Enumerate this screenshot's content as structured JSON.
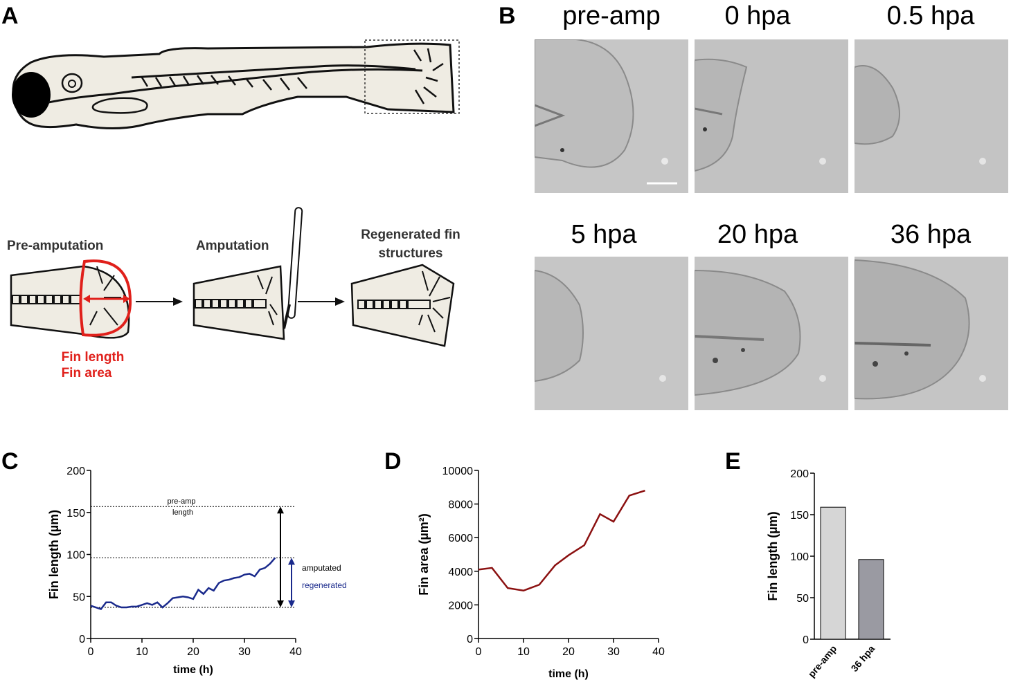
{
  "panels": {
    "a": "A",
    "b": "B",
    "c": "C",
    "d": "D",
    "e": "E"
  },
  "schematic": {
    "stage1": "Pre-amputation",
    "stage2": "Amputation",
    "stage3_line1": "Regenerated fin",
    "stage3_line2": "structures",
    "measure1": "Fin length",
    "measure2": "Fin area"
  },
  "micrographs": {
    "titles": [
      "pre-amp",
      "0 hpa",
      "0.5 hpa",
      "5 hpa",
      "20 hpa",
      "36 hpa"
    ]
  },
  "colors": {
    "blue": "#1a2a8c",
    "red": "#8b1010",
    "bar_light": "#d6d6d6",
    "bar_dark": "#9a9aa2",
    "annot_red": "#e0201b"
  },
  "chart_data": [
    {
      "panel": "C",
      "type": "line",
      "xlabel": "time (h)",
      "ylabel": "Fin length (µm)",
      "xlim": [
        0,
        40
      ],
      "ylim": [
        0,
        200
      ],
      "xticks": [
        "0",
        "10",
        "20",
        "30",
        "40"
      ],
      "yticks": [
        "0",
        "50",
        "100",
        "150",
        "200"
      ],
      "series": [
        {
          "x": [
            0,
            1,
            2,
            3,
            4,
            5,
            6,
            7,
            8,
            9,
            10,
            11,
            12,
            13,
            14,
            15,
            16,
            17,
            18,
            19,
            20,
            21,
            22,
            23,
            24,
            25,
            26,
            27,
            28,
            29,
            30,
            31,
            32,
            33,
            34,
            35,
            36
          ],
          "values": [
            39,
            37,
            35,
            43,
            43,
            39,
            37,
            37,
            38,
            38,
            40,
            42,
            40,
            43,
            37,
            42,
            48,
            49,
            50,
            49,
            47,
            58,
            53,
            60,
            57,
            66,
            69,
            70,
            72,
            73,
            76,
            77,
            74,
            82,
            84,
            89,
            96
          ]
        }
      ],
      "reference_lines": [
        {
          "y": 157,
          "label_line1": "pre-amp",
          "label_line2": "length"
        },
        {
          "y": 96
        },
        {
          "y": 37
        }
      ],
      "annotations": [
        {
          "text": "amputated",
          "from": 37,
          "to": 157
        },
        {
          "text": "regenerated",
          "from": 37,
          "to": 96
        }
      ]
    },
    {
      "panel": "D",
      "type": "line",
      "xlabel": "time (h)",
      "ylabel": "Fin area (µm²)",
      "xlim": [
        0,
        40
      ],
      "ylim": [
        0,
        10000
      ],
      "xticks": [
        "0",
        "10",
        "20",
        "30",
        "40"
      ],
      "yticks": [
        "0",
        "2000",
        "4000",
        "6000",
        "8000",
        "10000"
      ],
      "series": [
        {
          "x": [
            0,
            3,
            6.5,
            10,
            13.5,
            17,
            20,
            23.5,
            27,
            30,
            33.5,
            37
          ],
          "values": [
            4100,
            4200,
            3000,
            2850,
            3200,
            4350,
            4950,
            5550,
            7400,
            6950,
            8500,
            8800
          ]
        }
      ]
    },
    {
      "panel": "E",
      "type": "bar",
      "ylabel": "Fin length (µm)",
      "ylim": [
        0,
        200
      ],
      "yticks": [
        "0",
        "50",
        "100",
        "150",
        "200"
      ],
      "categories": [
        "pre-amp",
        "36 hpa"
      ],
      "values": [
        159,
        96
      ]
    }
  ]
}
